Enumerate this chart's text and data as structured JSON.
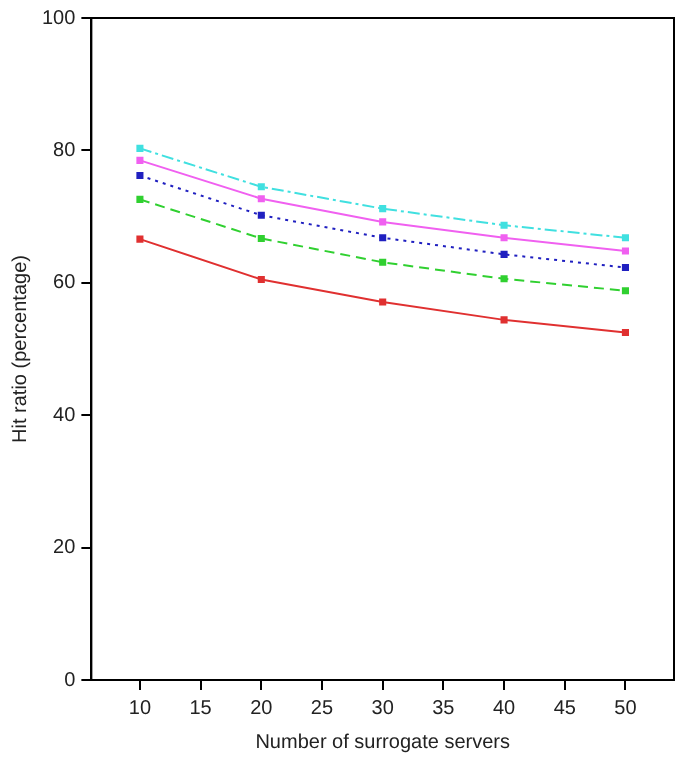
{
  "chart_data": {
    "type": "line",
    "xlabel": "Number of surrogate servers",
    "ylabel": "Hit ratio (percentage)",
    "x": [
      10,
      20,
      30,
      40,
      50
    ],
    "xlim": [
      6,
      54
    ],
    "xticks": [
      10,
      15,
      20,
      25,
      30,
      35,
      40,
      45,
      50
    ],
    "ylim": [
      0,
      100
    ],
    "yticks": [
      0,
      20,
      40,
      60,
      80,
      100
    ],
    "grid": false,
    "legend": false,
    "marker": "square",
    "series": [
      {
        "color": "#e03030",
        "line_style": "solid",
        "values": [
          66.6,
          60.5,
          57.1,
          54.4,
          52.5
        ]
      },
      {
        "color": "#30d030",
        "line_style": "dashed",
        "values": [
          72.6,
          66.7,
          63.1,
          60.6,
          58.8
        ]
      },
      {
        "color": "#2020c0",
        "line_style": "dotted",
        "values": [
          76.2,
          70.2,
          66.8,
          64.3,
          62.3
        ]
      },
      {
        "color": "#f060f0",
        "line_style": "solid",
        "values": [
          78.5,
          72.7,
          69.2,
          66.8,
          64.8
        ]
      },
      {
        "color": "#40e0e0",
        "line_style": "dashdot",
        "values": [
          80.3,
          74.5,
          71.2,
          68.7,
          66.8
        ]
      }
    ]
  }
}
